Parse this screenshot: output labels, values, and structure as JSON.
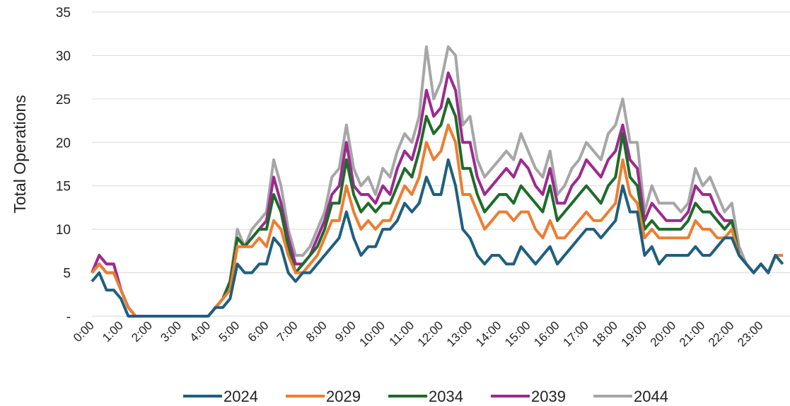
{
  "chart_data": {
    "type": "line",
    "y_label": "Total Operations",
    "ylim": [
      0,
      35
    ],
    "yticks": [
      {
        "value": 0,
        "label": "-"
      },
      5,
      10,
      15,
      20,
      25,
      30,
      35
    ],
    "grid": true,
    "legend": "bottom",
    "categories": [
      "0:00",
      null,
      null,
      null,
      "1:00",
      null,
      null,
      null,
      "2:00",
      null,
      null,
      null,
      "3:00",
      null,
      null,
      null,
      "4:00",
      null,
      null,
      null,
      "5:00",
      null,
      null,
      null,
      "6:00",
      null,
      null,
      null,
      "7:00",
      null,
      null,
      null,
      "8:00",
      null,
      null,
      null,
      "9:00",
      null,
      null,
      null,
      "10:00",
      null,
      null,
      null,
      "11:00",
      null,
      null,
      null,
      "12:00",
      null,
      null,
      null,
      "13:00",
      null,
      null,
      null,
      "14:00",
      null,
      null,
      null,
      "15:00",
      null,
      null,
      null,
      "16:00",
      null,
      null,
      null,
      "17:00",
      null,
      null,
      null,
      "18:00",
      null,
      null,
      null,
      "19:00",
      null,
      null,
      null,
      "20:00",
      null,
      null,
      null,
      "21:00",
      null,
      null,
      null,
      "22:00",
      null,
      null,
      null,
      "23:00",
      null,
      null,
      null
    ],
    "series": [
      {
        "name": "2024",
        "color": "#1f5f7f",
        "values": [
          4,
          5,
          3,
          3,
          2,
          0,
          0,
          0,
          0,
          0,
          0,
          0,
          0,
          0,
          0,
          0,
          0,
          1,
          1,
          2,
          6,
          5,
          5,
          6,
          6,
          9,
          8,
          5,
          4,
          5,
          5,
          6,
          7,
          8,
          9,
          12,
          9,
          7,
          8,
          8,
          10,
          10,
          11,
          13,
          12,
          13,
          16,
          14,
          14,
          18,
          15,
          10,
          9,
          7,
          6,
          7,
          7,
          6,
          6,
          8,
          7,
          6,
          7,
          8,
          6,
          7,
          8,
          9,
          10,
          10,
          9,
          10,
          11,
          15,
          12,
          12,
          7,
          8,
          6,
          7,
          7,
          7,
          7,
          8,
          7,
          7,
          8,
          9,
          9,
          7,
          6,
          5,
          6,
          5,
          7,
          6
        ]
      },
      {
        "name": "2029",
        "color": "#ed7d31",
        "values": [
          5,
          6,
          5,
          5,
          3,
          1,
          0,
          0,
          0,
          0,
          0,
          0,
          0,
          0,
          0,
          0,
          0,
          1,
          2,
          3,
          8,
          8,
          8,
          9,
          8,
          11,
          10,
          7,
          5,
          5,
          6,
          7,
          9,
          11,
          11,
          15,
          12,
          10,
          11,
          10,
          11,
          11,
          13,
          15,
          14,
          16,
          20,
          18,
          19,
          22,
          20,
          14,
          14,
          12,
          10,
          11,
          12,
          12,
          11,
          12,
          12,
          10,
          9,
          11,
          9,
          9,
          10,
          11,
          12,
          11,
          11,
          12,
          13,
          18,
          14,
          13,
          9,
          10,
          9,
          9,
          9,
          9,
          9,
          11,
          10,
          10,
          9,
          9,
          10,
          7,
          6,
          5,
          6,
          5,
          7,
          7
        ]
      },
      {
        "name": "2034",
        "color": "#1e6b2a",
        "values": [
          5,
          6,
          5,
          5,
          3,
          1,
          0,
          0,
          0,
          0,
          0,
          0,
          0,
          0,
          0,
          0,
          0,
          1,
          2,
          4,
          9,
          8,
          9,
          10,
          10,
          14,
          12,
          8,
          5,
          6,
          7,
          8,
          10,
          13,
          13,
          18,
          14,
          12,
          13,
          12,
          13,
          13,
          15,
          17,
          16,
          19,
          23,
          21,
          22,
          25,
          23,
          17,
          17,
          14,
          12,
          13,
          14,
          14,
          13,
          15,
          14,
          13,
          12,
          15,
          11,
          12,
          13,
          14,
          15,
          14,
          13,
          15,
          16,
          21,
          16,
          15,
          10,
          11,
          10,
          10,
          10,
          10,
          11,
          13,
          12,
          12,
          11,
          10,
          11,
          7,
          6,
          5,
          6,
          5,
          7,
          7
        ]
      },
      {
        "name": "2039",
        "color": "#9c2a8f",
        "values": [
          5,
          7,
          6,
          6,
          3,
          1,
          0,
          0,
          0,
          0,
          0,
          0,
          0,
          0,
          0,
          0,
          0,
          1,
          2,
          4,
          9,
          8,
          9,
          10,
          11,
          16,
          13,
          9,
          6,
          6,
          7,
          9,
          11,
          14,
          15,
          20,
          15,
          14,
          14,
          13,
          15,
          14,
          17,
          19,
          18,
          21,
          26,
          23,
          24,
          28,
          26,
          20,
          20,
          16,
          14,
          15,
          16,
          17,
          16,
          18,
          17,
          15,
          14,
          17,
          13,
          13,
          15,
          16,
          18,
          17,
          16,
          18,
          19,
          22,
          18,
          17,
          11,
          13,
          12,
          11,
          11,
          11,
          12,
          15,
          14,
          14,
          12,
          11,
          11,
          7,
          6,
          5,
          6,
          5,
          7,
          7
        ]
      },
      {
        "name": "2044",
        "color": "#a6a6a6",
        "values": [
          5,
          7,
          6,
          6,
          3,
          1,
          0,
          0,
          0,
          0,
          0,
          0,
          0,
          0,
          0,
          0,
          0,
          1,
          2,
          4,
          10,
          8,
          10,
          11,
          12,
          18,
          15,
          10,
          7,
          7,
          8,
          10,
          12,
          16,
          17,
          22,
          17,
          15,
          16,
          14,
          17,
          16,
          19,
          21,
          20,
          23,
          31,
          25,
          27,
          31,
          30,
          22,
          23,
          18,
          16,
          17,
          18,
          19,
          18,
          21,
          19,
          17,
          16,
          19,
          14,
          15,
          17,
          18,
          20,
          19,
          18,
          21,
          22,
          25,
          20,
          20,
          12,
          15,
          13,
          13,
          13,
          12,
          13,
          17,
          15,
          16,
          14,
          12,
          13,
          8,
          6,
          5,
          6,
          5,
          7,
          7
        ]
      }
    ]
  }
}
